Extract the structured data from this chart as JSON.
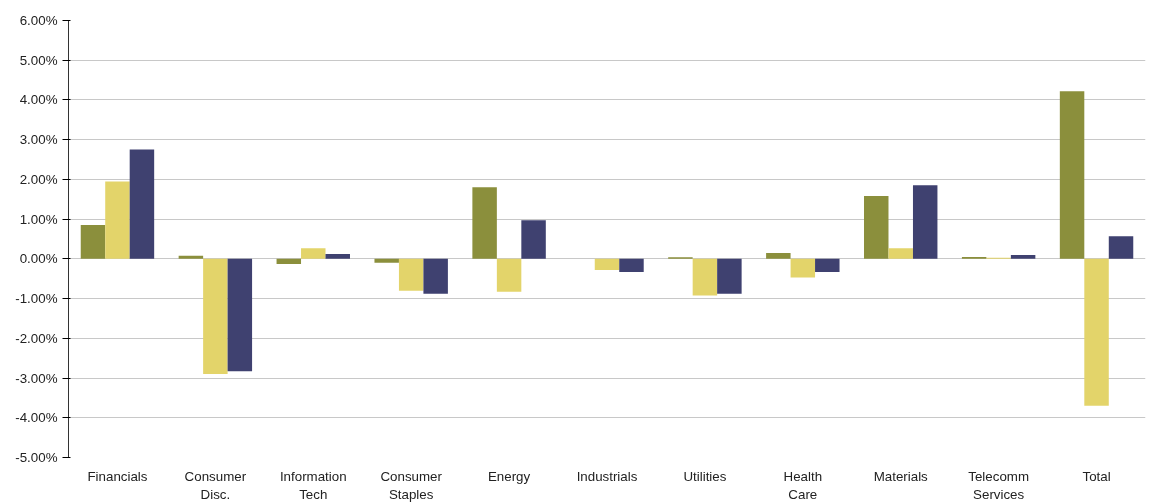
{
  "chart_data": {
    "type": "bar",
    "categories": [
      "Financials",
      "Consumer Disc.",
      "Information Tech",
      "Consumer Staples",
      "Energy",
      "Industrials",
      "Utilities",
      "Health Care",
      "Materials",
      "Telecomm Services",
      "Total"
    ],
    "series": [
      {
        "color": "#8b8f3c",
        "values": [
          0.85,
          0.08,
          -0.13,
          -0.1,
          1.8,
          0,
          0.04,
          0.15,
          1.58,
          0.05,
          4.22
        ]
      },
      {
        "color": "#e3d46a",
        "values": [
          1.95,
          -2.9,
          0.27,
          -0.8,
          -0.83,
          -0.28,
          -0.92,
          -0.47,
          0.27,
          0.03,
          -3.7
        ]
      },
      {
        "color": "#3f4170",
        "values": [
          2.75,
          -2.83,
          0.12,
          -0.88,
          0.97,
          -0.33,
          -0.88,
          -0.33,
          1.85,
          0.1,
          0.57
        ]
      }
    ],
    "ylim": [
      -5,
      6
    ],
    "yticks": [
      {
        "value": -5,
        "label": "-5.00%"
      },
      {
        "value": -4,
        "label": "-4.00%"
      },
      {
        "value": -3,
        "label": "-3.00%"
      },
      {
        "value": -2,
        "label": "-2.00%"
      },
      {
        "value": -1,
        "label": "-1.00%"
      },
      {
        "value": 0,
        "label": "0.00%"
      },
      {
        "value": 1,
        "label": "1.00%"
      },
      {
        "value": 2,
        "label": "2.00%"
      },
      {
        "value": 3,
        "label": "3.00%"
      },
      {
        "value": 4,
        "label": "4.00%"
      },
      {
        "value": 5,
        "label": "5.00%"
      },
      {
        "value": 6,
        "label": "6.00%"
      }
    ],
    "grid": "y"
  }
}
